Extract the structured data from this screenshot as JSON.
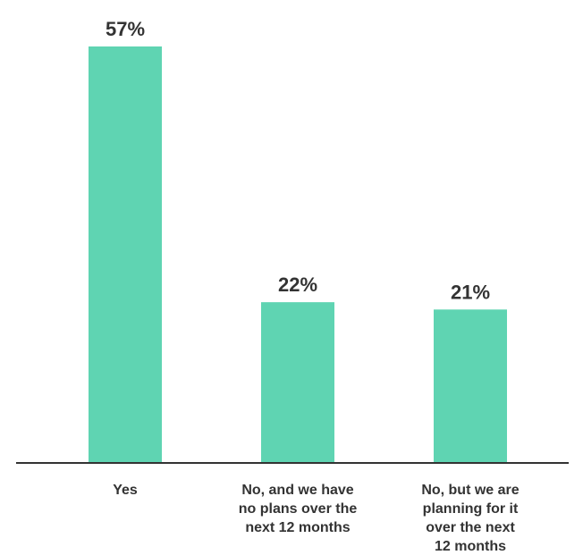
{
  "chart_data": {
    "type": "bar",
    "title": "",
    "xlabel": "",
    "ylabel": "",
    "categories": [
      "Yes",
      "No, and we have no plans over the next 12 months",
      "No, but we are planning for it over the next 12 months"
    ],
    "category_label_lines": [
      [
        "Yes"
      ],
      [
        "No, and we have",
        "no plans over the",
        "next 12 months"
      ],
      [
        "No, but we are",
        "planning for it",
        "over the next",
        "12 months"
      ]
    ],
    "values": [
      57,
      22,
      21
    ],
    "data_labels": [
      "57%",
      "22%",
      "21%"
    ],
    "ylim": [
      0,
      57
    ],
    "grid": false,
    "legend": "none",
    "bar_color": "#5fd4b2",
    "axis_color": "#333333",
    "text_color": "#333333"
  }
}
